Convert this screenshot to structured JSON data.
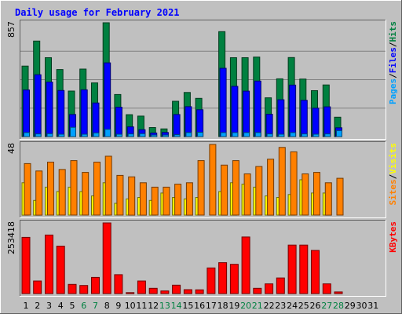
{
  "chart_data": {
    "type": "bar",
    "title": "Daily usage for February 2021",
    "days": [
      "1",
      "2",
      "3",
      "4",
      "5",
      "6",
      "7",
      "8",
      "9",
      "10",
      "11",
      "12",
      "13",
      "14",
      "15",
      "16",
      "17",
      "18",
      "19",
      "20",
      "21",
      "22",
      "23",
      "24",
      "25",
      "26",
      "27",
      "28",
      "29",
      "30",
      "31"
    ],
    "weekend_days": [
      "6",
      "7",
      "13",
      "14",
      "20",
      "21",
      "27",
      "28"
    ],
    "panels": [
      {
        "name": "hits-files-pages",
        "max_label": "857",
        "ymax": 857,
        "legend": [
          {
            "label": "Pages",
            "color": "#00a0ff"
          },
          {
            "label": "Files",
            "color": "#0000ff"
          },
          {
            "label": "Hits",
            "color": "#008040"
          }
        ],
        "series": [
          {
            "name": "Hits",
            "color": "#008040",
            "values": [
              531,
              719,
              594,
              505,
              343,
              508,
              404,
              857,
              317,
              165,
              154,
              68,
              58,
              266,
              332,
              288,
              0,
              790,
              594,
              594,
              599,
              292,
              435,
              595,
              433,
              346,
              389,
              146,
              0,
              0,
              0
            ]
          },
          {
            "name": "Files",
            "color": "#0000ff",
            "values": [
              351,
              466,
              411,
              347,
              166,
              352,
              253,
              555,
              221,
              73,
              52,
              27,
              31,
              166,
              225,
              202,
              0,
              514,
              378,
              342,
              418,
              168,
              277,
              388,
              273,
              214,
              224,
              66,
              0,
              0,
              0
            ]
          },
          {
            "name": "Pages",
            "color": "#00a0ff",
            "values": [
              30,
              20,
              22,
              18,
              70,
              18,
              28,
              55,
              18,
              20,
              22,
              12,
              12,
              14,
              30,
              32,
              0,
              30,
              30,
              30,
              30,
              20,
              18,
              30,
              20,
              18,
              20,
              45,
              0,
              0,
              0
            ]
          }
        ]
      },
      {
        "name": "visits-sites",
        "max_label": "48",
        "ymax": 48,
        "legend": [
          {
            "label": "Sites",
            "color": "#ff8000"
          },
          {
            "label": "Visits",
            "color": "#ffff00"
          }
        ],
        "series": [
          {
            "name": "Visits",
            "color": "#ffff00",
            "values": [
              22,
              10,
              19,
              16,
              19,
              16,
              13,
              22,
              8,
              11,
              12,
              10,
              15,
              12,
              11,
              12,
              0,
              16,
              22,
              21,
              19,
              13,
              12,
              14,
              24,
              15,
              15,
              0,
              0,
              0,
              0
            ]
          },
          {
            "name": "Sites",
            "color": "#ff8000",
            "values": [
              35,
              30,
              36,
              31,
              37,
              29,
              36,
              40,
              27,
              26,
              22,
              19,
              19,
              21,
              22,
              37,
              48,
              34,
              37,
              28,
              33,
              38,
              46,
              43,
              28,
              29,
              22,
              25,
              0,
              0,
              0
            ]
          }
        ]
      },
      {
        "name": "kbytes",
        "max_label": "253418",
        "ymax": 253418,
        "legend": [
          {
            "label": "KBytes",
            "color": "#ff0000"
          }
        ],
        "series": [
          {
            "name": "KBytes",
            "color": "#ff0000",
            "values": [
              201480,
              45000,
              210000,
              170000,
              33000,
              29000,
              58000,
              253418,
              68000,
              3300,
              45000,
              19000,
              9500,
              30000,
              14000,
              13500,
              92000,
              111000,
              105000,
              203000,
              19000,
              35000,
              56000,
              174000,
              174000,
              155000,
              35000,
              5900,
              0,
              0,
              0
            ]
          }
        ]
      }
    ]
  }
}
